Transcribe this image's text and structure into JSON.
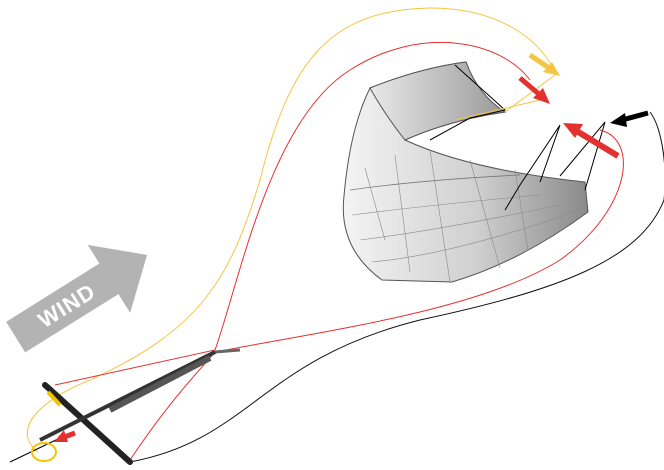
{
  "labels": {
    "wind": "WIND"
  }
}
